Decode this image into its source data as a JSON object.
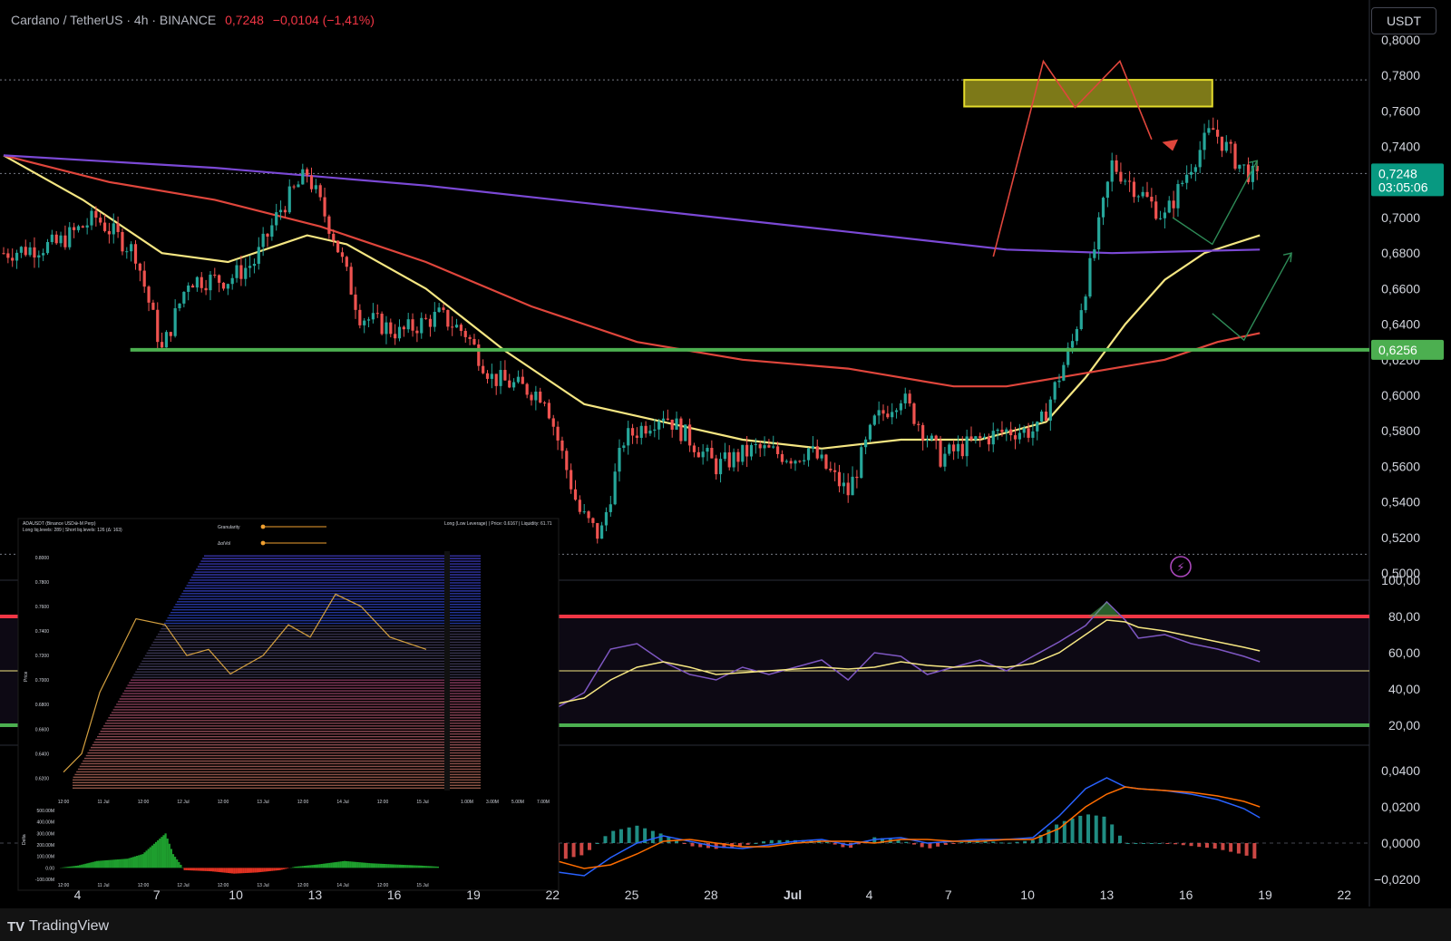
{
  "header": {
    "symbol": "Cardano / TetherUS · 4h · BINANCE",
    "price": "0,7248",
    "change": "−0,0104 (−1,41%)"
  },
  "currency_button": "USDT",
  "footer": {
    "logo": "TV",
    "brand": "TradingView"
  },
  "price_tags": [
    {
      "text": "0,7248",
      "sub": "03:05:06",
      "value": 0.7248,
      "color": "#089981"
    },
    {
      "text": "0,6256",
      "sub": "",
      "value": 0.6256,
      "color": "#4caf50"
    }
  ],
  "colors": {
    "up": "#26a69a",
    "down": "#ef5350",
    "ma_fast": "#f5e682",
    "ma_mid": "#e0463c",
    "ma_slow": "#7b49d6",
    "support": "#4caf50",
    "resistance_zone": "#e4dc2c",
    "rsi_line": "#7e57c2",
    "rsi_ma": "#f5e682",
    "macd": "#2962ff",
    "signal": "#ff6d00"
  },
  "chart_data": [
    {
      "type": "candlestick",
      "title": "Cardano / TetherUS · 4h · BINANCE",
      "y_axis_side": "right",
      "ylim": [
        0.5,
        0.8
      ],
      "y_ticks": [
        "0,8000",
        "0,7800",
        "0,7600",
        "0,7400",
        "0,7200",
        "0,7000",
        "0,6800",
        "0,6600",
        "0,6400",
        "0,6200",
        "0,6000",
        "0,5800",
        "0,5600",
        "0,5400",
        "0,5200",
        "0,5000"
      ],
      "x_ticks": [
        "4",
        "7",
        "10",
        "13",
        "16",
        "19",
        "22",
        "25",
        "28",
        "Jul",
        "4",
        "7",
        "10",
        "13",
        "16",
        "19",
        "22"
      ],
      "price_path": [
        [
          0,
          0.68
        ],
        [
          2,
          0.685
        ],
        [
          3.5,
          0.7
        ],
        [
          5,
          0.68
        ],
        [
          6,
          0.625
        ],
        [
          7,
          0.665
        ],
        [
          8.5,
          0.665
        ],
        [
          9.5,
          0.675
        ],
        [
          10.5,
          0.705
        ],
        [
          11.5,
          0.725
        ],
        [
          12.5,
          0.69
        ],
        [
          13.5,
          0.645
        ],
        [
          15,
          0.635
        ],
        [
          16.5,
          0.645
        ],
        [
          17.5,
          0.635
        ],
        [
          18.5,
          0.61
        ],
        [
          20.5,
          0.6
        ],
        [
          21,
          0.575
        ],
        [
          21.8,
          0.535
        ],
        [
          22.6,
          0.52
        ],
        [
          23.5,
          0.575
        ],
        [
          25,
          0.59
        ],
        [
          27,
          0.56
        ],
        [
          28.5,
          0.57
        ],
        [
          30,
          0.565
        ],
        [
          30.5,
          0.57
        ],
        [
          32,
          0.545
        ],
        [
          33,
          0.585
        ],
        [
          34,
          0.6
        ],
        [
          35.5,
          0.565
        ],
        [
          37,
          0.575
        ],
        [
          38,
          0.58
        ],
        [
          39.2,
          0.58
        ],
        [
          40.5,
          0.63
        ],
        [
          41.3,
          0.68
        ],
        [
          42,
          0.73
        ],
        [
          43,
          0.715
        ],
        [
          44,
          0.7
        ],
        [
          45,
          0.73
        ],
        [
          45.8,
          0.75
        ],
        [
          46.8,
          0.73
        ],
        [
          47.6,
          0.72
        ]
      ],
      "resistance_zone": [
        0.7625,
        0.7775
      ],
      "support_level": 0.6256,
      "last_price": 0.7248,
      "moving_averages": [
        {
          "name": "MA fast",
          "color": "#f5e682",
          "points": [
            [
              0,
              0.735
            ],
            [
              3,
              0.71
            ],
            [
              6,
              0.68
            ],
            [
              8.5,
              0.675
            ],
            [
              10.5,
              0.685
            ],
            [
              11.5,
              0.69
            ],
            [
              13,
              0.685
            ],
            [
              16,
              0.66
            ],
            [
              19,
              0.625
            ],
            [
              22,
              0.595
            ],
            [
              25,
              0.585
            ],
            [
              28,
              0.575
            ],
            [
              31,
              0.57
            ],
            [
              34,
              0.575
            ],
            [
              37,
              0.575
            ],
            [
              39.5,
              0.585
            ],
            [
              41,
              0.61
            ],
            [
              42.5,
              0.64
            ],
            [
              44,
              0.665
            ],
            [
              45.5,
              0.68
            ],
            [
              47.6,
              0.69
            ]
          ]
        },
        {
          "name": "MA mid",
          "color": "#e0463c",
          "points": [
            [
              0,
              0.735
            ],
            [
              4,
              0.72
            ],
            [
              8,
              0.71
            ],
            [
              12,
              0.695
            ],
            [
              16,
              0.675
            ],
            [
              20,
              0.65
            ],
            [
              24,
              0.63
            ],
            [
              28,
              0.62
            ],
            [
              32,
              0.615
            ],
            [
              36,
              0.605
            ],
            [
              38,
              0.605
            ],
            [
              40,
              0.61
            ],
            [
              42,
              0.615
            ],
            [
              44,
              0.62
            ],
            [
              46,
              0.63
            ],
            [
              47.6,
              0.635
            ]
          ]
        },
        {
          "name": "MA slow",
          "color": "#7b49d6",
          "points": [
            [
              0,
              0.735
            ],
            [
              8,
              0.728
            ],
            [
              16,
              0.718
            ],
            [
              24,
              0.705
            ],
            [
              32,
              0.692
            ],
            [
              38,
              0.682
            ],
            [
              42,
              0.68
            ],
            [
              47.6,
              0.682
            ]
          ]
        }
      ],
      "projection": [
        [
          37.5,
          0.678
        ],
        [
          39.4,
          0.788
        ],
        [
          40.6,
          0.762
        ],
        [
          42.3,
          0.788
        ],
        [
          43.5,
          0.744
        ]
      ],
      "scenario_arrows": [
        [
          [
            44.3,
            0.7
          ],
          [
            45.8,
            0.685
          ],
          [
            47.5,
            0.732
          ]
        ],
        [
          [
            45.8,
            0.646
          ],
          [
            47,
            0.631
          ],
          [
            48.8,
            0.68
          ]
        ]
      ]
    },
    {
      "type": "line",
      "title": "RSI",
      "ylim": [
        0,
        100
      ],
      "y_ticks": [
        "100,00",
        "80,00",
        "60,00",
        "40,00",
        "20,00"
      ],
      "bands": {
        "upper": 80,
        "middle": 50,
        "lower": 20
      },
      "rsi": [
        [
          21,
          30
        ],
        [
          22,
          38
        ],
        [
          23,
          62
        ],
        [
          24,
          65
        ],
        [
          25,
          55
        ],
        [
          26,
          48
        ],
        [
          27,
          45
        ],
        [
          28,
          52
        ],
        [
          29,
          48
        ],
        [
          30,
          52
        ],
        [
          31,
          56
        ],
        [
          32,
          45
        ],
        [
          33,
          60
        ],
        [
          34,
          58
        ],
        [
          35,
          48
        ],
        [
          36,
          52
        ],
        [
          37,
          56
        ],
        [
          38,
          50
        ],
        [
          39,
          58
        ],
        [
          40,
          66
        ],
        [
          41,
          75
        ],
        [
          41.8,
          88
        ],
        [
          42.5,
          78
        ],
        [
          43,
          68
        ],
        [
          44,
          70
        ],
        [
          45,
          65
        ],
        [
          46,
          62
        ],
        [
          47,
          58
        ],
        [
          47.6,
          55
        ]
      ],
      "rsi_ma": [
        [
          21,
          32
        ],
        [
          22,
          35
        ],
        [
          23,
          45
        ],
        [
          24,
          52
        ],
        [
          25,
          55
        ],
        [
          26,
          52
        ],
        [
          27,
          48
        ],
        [
          28,
          49
        ],
        [
          29,
          50
        ],
        [
          30,
          51
        ],
        [
          31,
          52
        ],
        [
          32,
          51
        ],
        [
          33,
          52
        ],
        [
          34,
          55
        ],
        [
          35,
          53
        ],
        [
          36,
          52
        ],
        [
          37,
          53
        ],
        [
          38,
          52
        ],
        [
          39,
          54
        ],
        [
          40,
          60
        ],
        [
          41,
          70
        ],
        [
          41.8,
          78
        ],
        [
          42.5,
          77
        ],
        [
          43,
          74
        ],
        [
          44,
          72
        ],
        [
          45,
          69
        ],
        [
          46,
          66
        ],
        [
          47,
          63
        ],
        [
          47.6,
          61
        ]
      ]
    },
    {
      "type": "bar",
      "title": "MACD",
      "ylim": [
        -0.03,
        0.045
      ],
      "y_ticks": [
        "0,0400",
        "0,0200",
        "0,0000",
        "−0,0200"
      ],
      "macd": [
        [
          21,
          -0.016
        ],
        [
          22,
          -0.018
        ],
        [
          23,
          -0.008
        ],
        [
          24,
          0
        ],
        [
          25,
          0.004
        ],
        [
          26,
          0.001
        ],
        [
          27,
          -0.002
        ],
        [
          28,
          -0.003
        ],
        [
          29,
          -0.001
        ],
        [
          30,
          0.001
        ],
        [
          31,
          0.002
        ],
        [
          32,
          -0.001
        ],
        [
          33,
          0.002
        ],
        [
          34,
          0.003
        ],
        [
          35,
          0
        ],
        [
          36,
          0.001
        ],
        [
          37,
          0.002
        ],
        [
          38,
          0.002
        ],
        [
          39,
          0.003
        ],
        [
          40,
          0.015
        ],
        [
          41,
          0.03
        ],
        [
          41.8,
          0.036
        ],
        [
          42.5,
          0.031
        ],
        [
          43,
          0.03
        ],
        [
          44,
          0.029
        ],
        [
          45,
          0.027
        ],
        [
          46,
          0.024
        ],
        [
          47,
          0.019
        ],
        [
          47.6,
          0.014
        ]
      ],
      "signal": [
        [
          21,
          -0.01
        ],
        [
          22,
          -0.014
        ],
        [
          23,
          -0.012
        ],
        [
          24,
          -0.006
        ],
        [
          25,
          0.001
        ],
        [
          26,
          0.002
        ],
        [
          27,
          0
        ],
        [
          28,
          -0.002
        ],
        [
          29,
          -0.002
        ],
        [
          30,
          0
        ],
        [
          31,
          0.001
        ],
        [
          32,
          0.001
        ],
        [
          33,
          0
        ],
        [
          34,
          0.002
        ],
        [
          35,
          0.002
        ],
        [
          36,
          0.001
        ],
        [
          37,
          0.001
        ],
        [
          38,
          0.002
        ],
        [
          39,
          0.002
        ],
        [
          40,
          0.008
        ],
        [
          41,
          0.02
        ],
        [
          41.8,
          0.027
        ],
        [
          42.5,
          0.031
        ],
        [
          43,
          0.03
        ],
        [
          44,
          0.029
        ],
        [
          45,
          0.028
        ],
        [
          46,
          0.026
        ],
        [
          47,
          0.023
        ],
        [
          47.6,
          0.02
        ]
      ]
    },
    {
      "type": "heatmap",
      "title": "ADAUSDT (Binance USD⊕-M Perp)",
      "subtitle": "Long liq.levels: 289 | Short liq.levels: 126 (Δ: 163)",
      "header_right": "Long (Low Leverage) | Price: 0.6167 | Liquidity: 61.71",
      "controls": [
        "Granularity",
        "ΔoiVol"
      ],
      "y_label": "Price",
      "y_ticks": [
        "0.8000",
        "0.7800",
        "0.7600",
        "0.7400",
        "0.7200",
        "0.7000",
        "0.6800",
        "0.6600",
        "0.6400",
        "0.6200"
      ],
      "x_ticks": [
        "12:00",
        "11 Jul",
        "12:00",
        "12 Jul",
        "12:00",
        "13 Jul",
        "12:00",
        "14 Jul",
        "12:00",
        "15 Jul"
      ],
      "x2_ticks": [
        "1.00M",
        "3.00M",
        "5.00M",
        "7.00M"
      ],
      "sub_y_label": "Delta",
      "sub_y_ticks": [
        "500.00M",
        "400.00M",
        "300.00M",
        "200.00M",
        "100.00M",
        "0.00",
        "-100.00M"
      ],
      "sub_x_ticks": [
        "12:00",
        "11 Jul",
        "12:00",
        "12 Jul",
        "12:00",
        "13 Jul",
        "12:00",
        "14 Jul",
        "12:00",
        "15 Jul"
      ]
    }
  ]
}
